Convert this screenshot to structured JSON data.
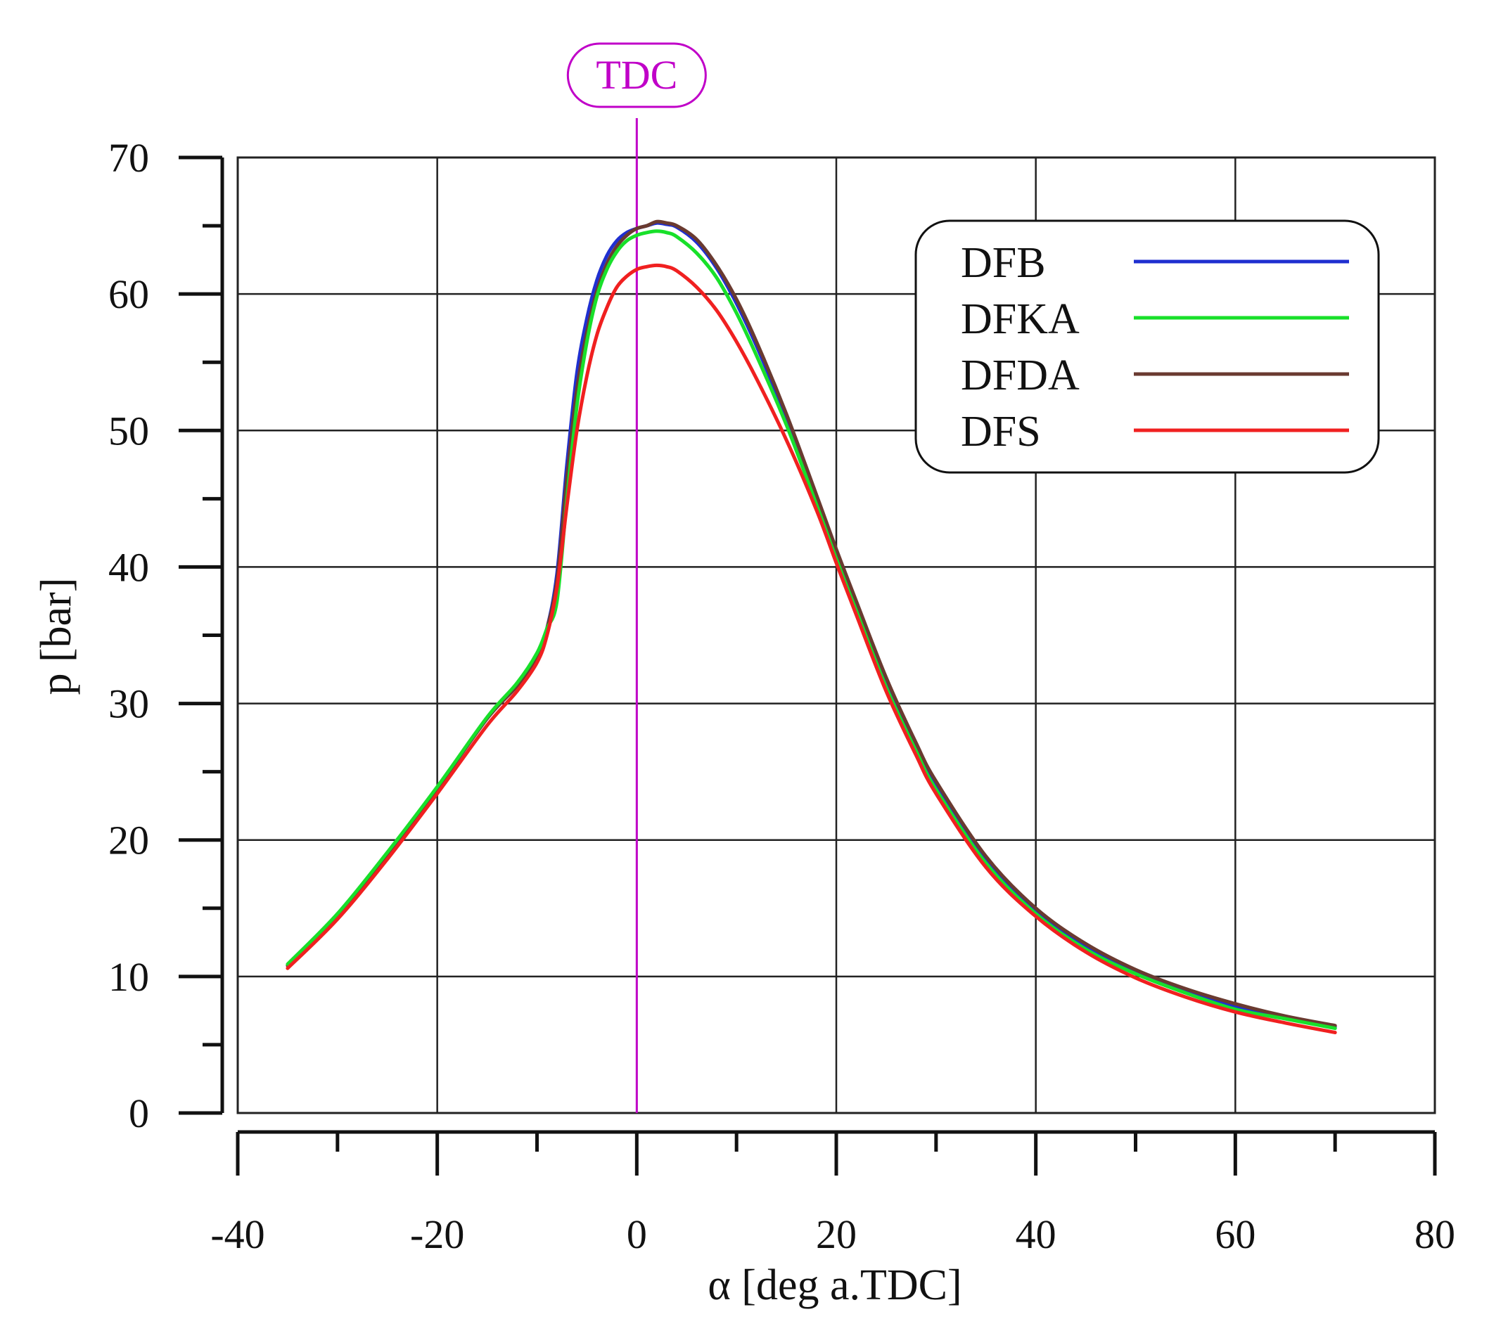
{
  "chart_data": {
    "type": "line",
    "title": "",
    "xlabel": "α [deg a.TDC]",
    "ylabel": "p [bar]",
    "xlim": [
      -40,
      80
    ],
    "ylim": [
      0,
      70
    ],
    "xticks": [
      -40,
      -20,
      0,
      20,
      40,
      60,
      80
    ],
    "yticks": [
      0,
      10,
      20,
      30,
      40,
      50,
      60,
      70
    ],
    "xtick_labels": [
      "-40",
      "-20",
      "0",
      "20",
      "40",
      "60",
      "80"
    ],
    "ytick_labels": [
      "0",
      "10",
      "20",
      "30",
      "40",
      "50",
      "60",
      "70"
    ],
    "x_minor_step": 10,
    "y_minor_step": 5,
    "grid": true,
    "legend_position": "top-right",
    "annotations": [
      {
        "label": "TDC",
        "x": 0,
        "color": "#c000c8"
      }
    ],
    "series": [
      {
        "name": "DFB",
        "color": "#1f2fd0",
        "x": [
          -35,
          -30,
          -25,
          -20,
          -15,
          -12,
          -10,
          -9,
          -8,
          -7,
          -6,
          -5,
          -4,
          -3,
          -2,
          -1,
          0,
          1,
          2,
          3,
          4,
          6,
          8,
          10,
          12,
          15,
          18,
          20,
          22,
          25,
          28,
          30,
          35,
          40,
          45,
          50,
          55,
          60,
          65,
          70
        ],
        "y": [
          10.8,
          14.5,
          19.0,
          23.8,
          28.9,
          31.3,
          33.5,
          35.5,
          39.5,
          47.5,
          54.2,
          58.2,
          61.0,
          62.8,
          63.9,
          64.5,
          64.8,
          65.0,
          65.2,
          65.1,
          64.9,
          63.8,
          61.9,
          59.3,
          56.2,
          50.9,
          45.0,
          41.0,
          37.2,
          31.6,
          26.8,
          24.0,
          18.6,
          14.8,
          12.2,
          10.3,
          8.9,
          7.8,
          7.0,
          6.3
        ]
      },
      {
        "name": "DFKA",
        "color": "#18e02a",
        "x": [
          -35,
          -30,
          -25,
          -20,
          -15,
          -12,
          -10,
          -9,
          -8,
          -7,
          -6,
          -5,
          -4,
          -3,
          -2,
          -1,
          0,
          1,
          2,
          3,
          4,
          6,
          8,
          10,
          12,
          15,
          18,
          20,
          22,
          25,
          28,
          30,
          35,
          40,
          45,
          50,
          55,
          60,
          65,
          70
        ],
        "y": [
          10.9,
          14.6,
          19.1,
          23.9,
          29.0,
          31.5,
          33.7,
          35.5,
          37.5,
          45.0,
          51.8,
          56.5,
          59.8,
          61.8,
          63.1,
          63.9,
          64.3,
          64.5,
          64.6,
          64.5,
          64.2,
          63.0,
          61.2,
          58.6,
          55.5,
          50.4,
          44.6,
          40.6,
          36.8,
          31.2,
          26.5,
          23.7,
          18.3,
          14.6,
          12.0,
          10.2,
          8.8,
          7.6,
          6.9,
          6.2
        ]
      },
      {
        "name": "DFDA",
        "color": "#6a3a30",
        "x": [
          -35,
          -30,
          -25,
          -20,
          -15,
          -12,
          -10,
          -9,
          -8,
          -7,
          -6,
          -5,
          -4,
          -3,
          -2,
          -1,
          0,
          1,
          2,
          3,
          4,
          6,
          8,
          10,
          12,
          15,
          18,
          20,
          22,
          25,
          28,
          30,
          35,
          40,
          45,
          50,
          55,
          60,
          65,
          70
        ],
        "y": [
          10.8,
          14.5,
          19.0,
          23.8,
          28.9,
          31.3,
          33.5,
          35.5,
          39.0,
          46.5,
          53.0,
          57.2,
          60.2,
          62.2,
          63.5,
          64.3,
          64.8,
          65.0,
          65.3,
          65.2,
          65.0,
          64.0,
          62.1,
          59.6,
          56.5,
          51.2,
          45.3,
          41.3,
          37.5,
          31.9,
          27.1,
          24.3,
          18.8,
          15.0,
          12.4,
          10.5,
          9.1,
          8.0,
          7.1,
          6.4
        ]
      },
      {
        "name": "DFS",
        "color": "#f02020",
        "x": [
          -35,
          -30,
          -25,
          -20,
          -15,
          -12,
          -10,
          -9,
          -8,
          -7,
          -6,
          -5,
          -4,
          -3,
          -2,
          -1,
          0,
          1,
          2,
          3,
          4,
          6,
          8,
          10,
          12,
          15,
          18,
          20,
          22,
          25,
          28,
          30,
          35,
          40,
          45,
          50,
          55,
          60,
          65,
          70
        ],
        "y": [
          10.6,
          14.2,
          18.6,
          23.4,
          28.4,
          30.9,
          33.0,
          35.0,
          38.5,
          44.5,
          50.0,
          54.0,
          57.0,
          59.0,
          60.5,
          61.3,
          61.8,
          62.0,
          62.1,
          62.0,
          61.7,
          60.5,
          58.8,
          56.5,
          53.8,
          49.3,
          44.2,
          40.3,
          36.5,
          30.9,
          26.2,
          23.4,
          18.0,
          14.4,
          11.8,
          9.9,
          8.5,
          7.4,
          6.6,
          5.9
        ]
      }
    ]
  }
}
